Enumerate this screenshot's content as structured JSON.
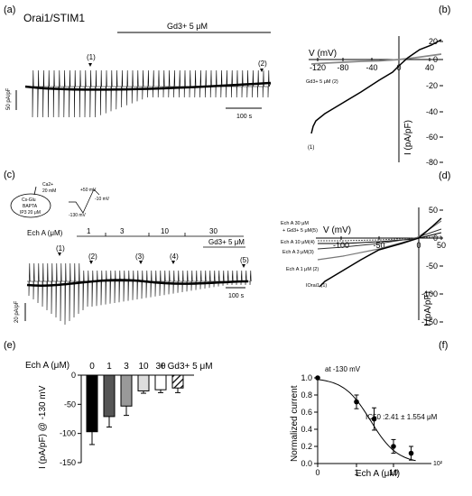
{
  "panel_a": {
    "label": "(a)",
    "title": "Orai1/STIM1",
    "drug_bar": "Gd3+ 5 μM",
    "scale_y": "50 pA/pF",
    "scale_x": "100 s",
    "marker1": "(1)",
    "marker2": "(2)"
  },
  "panel_b": {
    "label": "(b)",
    "xaxis_title": "V (mV)",
    "yaxis_title": "I (pA/pF)",
    "xticks": [
      "-120",
      "-80",
      "-40",
      "0",
      "40"
    ],
    "yticks": [
      "20",
      "0",
      "-20",
      "-40",
      "-60",
      "-80"
    ],
    "trace2_label": "Gd3+ 5 μM (2)",
    "trace1_label": "(1)"
  },
  "panel_c": {
    "label": "(c)",
    "pipette_cs": "Cs-Glu",
    "pipette_bapta": "BAPTA",
    "pipette_ip3": "IP3 20 μM",
    "bath_ca": "Ca2+",
    "bath_ca_conc": "20 mM",
    "protocol_top": "+50 mV",
    "protocol_mid": "-10 mV",
    "protocol_bottom": "-130 mV",
    "echa_label": "Ech A (μM)",
    "conc": [
      "1",
      "3",
      "10",
      "30"
    ],
    "gd_label": "Gd3+ 5 μM",
    "markers": [
      "(1)",
      "(2)",
      "(3)",
      "(4)",
      "(5)"
    ],
    "scale_y": "20 pA/pF",
    "scale_x": "100 s"
  },
  "panel_d": {
    "label": "(d)",
    "xaxis_title": "V (mV)",
    "yaxis_title": "I (pA/pF)",
    "xticks": [
      "-100",
      "-50",
      "0",
      "50"
    ],
    "yticks": [
      "50",
      "0",
      "-50",
      "-100",
      "-150"
    ],
    "legend": [
      "Ech A 30 μM",
      "+ Gd3+ 5 μM(5)",
      "Ech A 10 μM(4)",
      "Ech A 3 μM(3)",
      "Ech A 1 μM (2)",
      "IOrai1 (1)"
    ]
  },
  "panel_e": {
    "label": "(e)",
    "echa_label": "Ech A (μM)",
    "gd_label": "+ Gd3+ 5 μM",
    "yaxis_title": "I (pA/pF) @ -130 mV",
    "yticks": [
      "0",
      "-50",
      "-100",
      "-150"
    ]
  },
  "panel_f": {
    "label": "(f)",
    "annotation": "at -130 mV",
    "ic50": "IC50 :2.41 ± 1.554 μM",
    "yaxis_title": "Normalized current",
    "xaxis_title": "Ech A (μM)",
    "yticks": [
      "1.0",
      "0.8",
      "0.6",
      "0.4",
      "0.2",
      "0.0"
    ],
    "xticks": [
      "0",
      "1",
      "10"
    ],
    "xtick_last": "10²"
  },
  "chart_data": [
    {
      "type": "bar",
      "panel": "e",
      "categories": [
        "0",
        "1",
        "3",
        "10",
        "30",
        "+ Gd3+ 5 μM"
      ],
      "values": [
        -97,
        -71,
        -53,
        -27,
        -25,
        -22
      ],
      "errors": [
        22,
        18,
        16,
        4,
        5,
        8
      ],
      "colors": [
        "#000000",
        "#555555",
        "#999999",
        "#dddddd",
        "#ffffff",
        "hatch"
      ],
      "ylabel": "I (pA/pF) @ -130 mV",
      "ylim": [
        -150,
        0
      ]
    },
    {
      "type": "scatter",
      "panel": "f",
      "x": [
        0,
        1,
        3,
        10,
        30
      ],
      "y": [
        1.0,
        0.72,
        0.52,
        0.2,
        0.12
      ],
      "errors": [
        0,
        0.08,
        0.13,
        0.08,
        0.08
      ],
      "xscale": "log",
      "xlabel": "Ech A (μM)",
      "ylabel": "Normalized current",
      "ylim": [
        0,
        1.0
      ],
      "fit": "hill",
      "ic50": 2.41
    }
  ]
}
